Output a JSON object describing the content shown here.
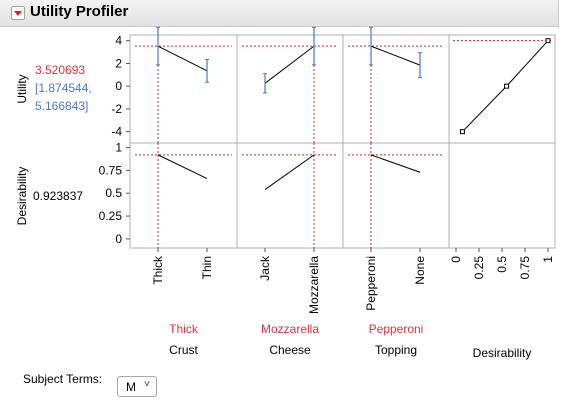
{
  "title": "Utility Profiler",
  "colors": {
    "current": "#e0353b",
    "ci": "#4b79c7",
    "grid": "#d9d9d9",
    "ref": "#cc2a2a"
  },
  "utility": {
    "label": "Utility",
    "value": "3.520693",
    "ci_low": "[1.874544,",
    "ci_high": "5.166843]"
  },
  "desirability": {
    "label": "Desirability",
    "value": "0.923837"
  },
  "y_axes": {
    "utility": {
      "ticks": [
        "4",
        "2",
        "0",
        "-2",
        "-4"
      ],
      "range": [
        -5,
        4.5
      ]
    },
    "desirability": {
      "ticks": [
        "1",
        "0.75",
        "0.5",
        "0.25",
        "0"
      ],
      "range": [
        -0.1,
        1.05
      ]
    }
  },
  "factors": [
    {
      "name": "Crust",
      "current": "Thick",
      "levels": [
        "Thick",
        "Thin"
      ],
      "utility": [
        3.52,
        1.35
      ],
      "ci": [
        [
          1.87,
          5.17
        ],
        [
          0.35,
          2.35
        ]
      ],
      "desirability": [
        0.92,
        0.66
      ]
    },
    {
      "name": "Cheese",
      "current": "Mozzarella",
      "levels": [
        "Jack",
        "Mozzarella"
      ],
      "utility": [
        0.25,
        3.52
      ],
      "ci": [
        [
          -0.6,
          1.1
        ],
        [
          1.87,
          5.17
        ]
      ],
      "desirability": [
        0.54,
        0.92
      ]
    },
    {
      "name": "Topping",
      "current": "Pepperoni",
      "levels": [
        "Pepperoni",
        "None"
      ],
      "utility": [
        3.52,
        1.85
      ],
      "ci": [
        [
          1.87,
          5.17
        ],
        [
          0.75,
          2.95
        ]
      ],
      "desirability": [
        0.92,
        0.73
      ]
    }
  ],
  "desirability_panel": {
    "label": "Desirability",
    "ticks": [
      "0",
      "0.25",
      "0.5",
      "0.75",
      "1"
    ],
    "curve": [
      [
        0.07,
        -4
      ],
      [
        0.55,
        0
      ],
      [
        1,
        4
      ]
    ]
  },
  "subject_terms": {
    "label": "Subject Terms:",
    "value": "M",
    "chevron": "˅"
  }
}
